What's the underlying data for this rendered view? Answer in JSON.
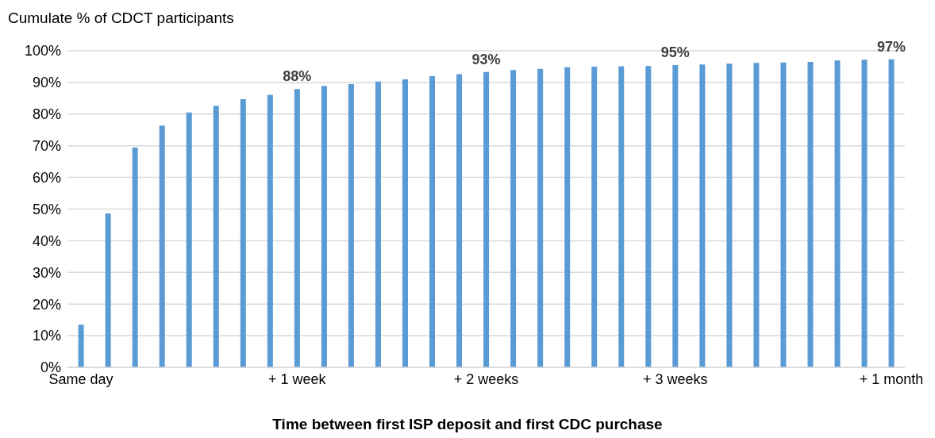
{
  "chart_data": {
    "type": "bar",
    "title": "Cumulate % of CDCT participants",
    "xlabel": "Time between first ISP deposit and first CDC purchase",
    "categories": [
      "Same day",
      null,
      null,
      null,
      null,
      null,
      null,
      null,
      "+ 1 week",
      null,
      null,
      null,
      null,
      null,
      null,
      "+ 2 weeks",
      null,
      null,
      null,
      null,
      null,
      null,
      "+ 3 weeks",
      null,
      null,
      null,
      null,
      null,
      null,
      null,
      "+ 1 month"
    ],
    "values": [
      13.5,
      48.6,
      69.4,
      76.4,
      80.5,
      82.6,
      84.7,
      86.1,
      87.9,
      88.9,
      89.5,
      90.3,
      91.0,
      92.0,
      92.6,
      93.3,
      93.9,
      94.3,
      94.8,
      95.0,
      95.1,
      95.2,
      95.5,
      95.7,
      95.9,
      96.2,
      96.3,
      96.5,
      96.9,
      97.2,
      97.3
    ],
    "value_labels": [
      null,
      null,
      null,
      null,
      null,
      null,
      null,
      null,
      "88%",
      null,
      null,
      null,
      null,
      null,
      null,
      "93%",
      null,
      null,
      null,
      null,
      null,
      null,
      "95%",
      null,
      null,
      null,
      null,
      null,
      null,
      null,
      "97%"
    ],
    "color": "#5b9bd5",
    "ylim": [
      0,
      100
    ],
    "yticks": [
      {
        "value": 0,
        "label": "0%"
      },
      {
        "value": 10,
        "label": "10%"
      },
      {
        "value": 20,
        "label": "20%"
      },
      {
        "value": 30,
        "label": "30%"
      },
      {
        "value": 40,
        "label": "40%"
      },
      {
        "value": 50,
        "label": "50%"
      },
      {
        "value": 60,
        "label": "60%"
      },
      {
        "value": 70,
        "label": "70%"
      },
      {
        "value": 80,
        "label": "80%"
      },
      {
        "value": 90,
        "label": "90%"
      },
      {
        "value": 100,
        "label": "100%"
      }
    ],
    "grid": "y"
  }
}
